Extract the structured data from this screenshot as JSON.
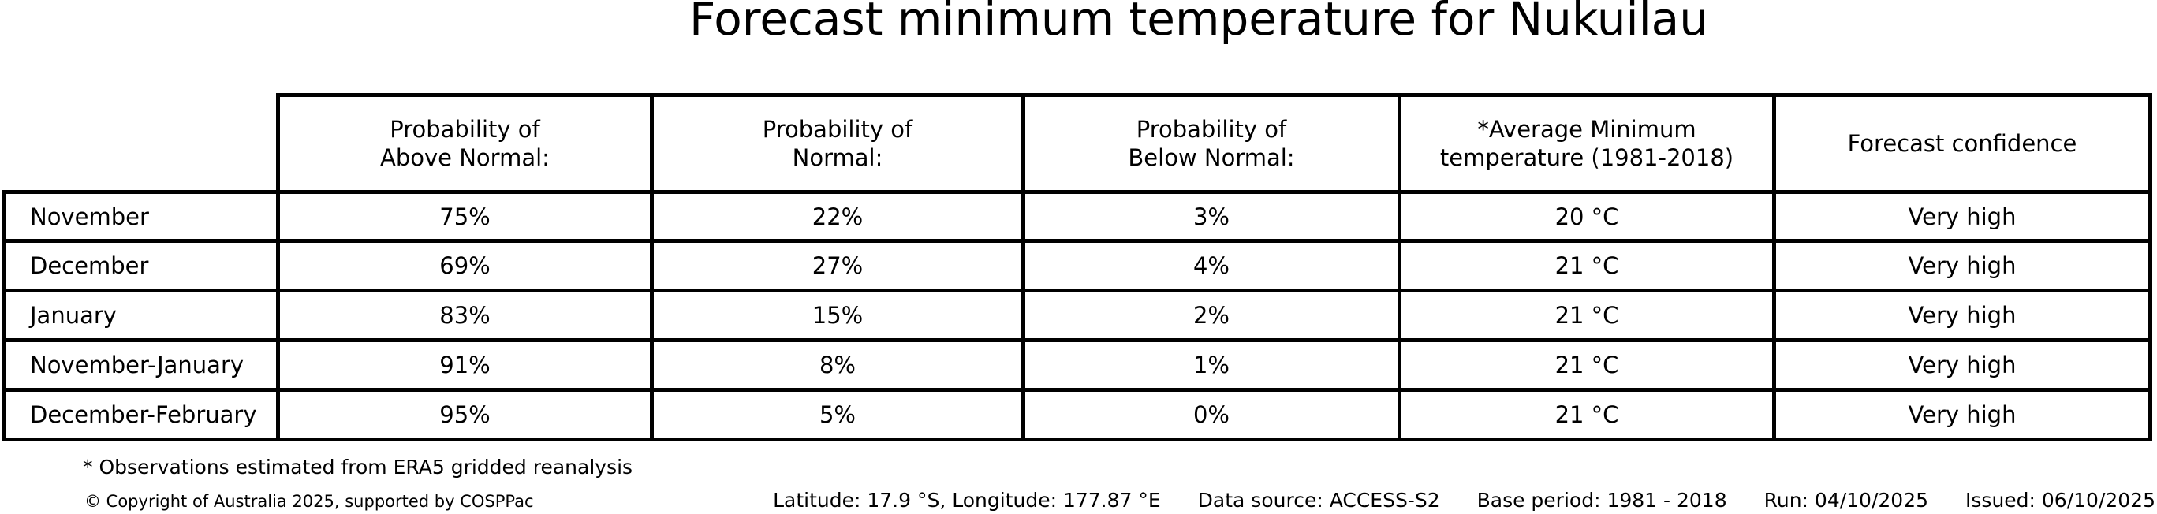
{
  "title": "Forecast minimum temperature for Nukuilau",
  "table": {
    "columns": [
      "Probability of\nAbove Normal:",
      "Probability of\nNormal:",
      "Probability of\nBelow Normal:",
      "*Average Minimum\ntemperature (1981-2018)",
      "Forecast confidence"
    ],
    "rows": [
      {
        "label": "November",
        "above": "75%",
        "normal": "22%",
        "below": "3%",
        "temp": "20 °C",
        "confidence": "Very high"
      },
      {
        "label": "December",
        "above": "69%",
        "normal": "27%",
        "below": "4%",
        "temp": "21 °C",
        "confidence": "Very high"
      },
      {
        "label": "January",
        "above": "83%",
        "normal": "15%",
        "below": "2%",
        "temp": "21 °C",
        "confidence": "Very high"
      },
      {
        "label": "November-January",
        "above": "91%",
        "normal": "8%",
        "below": "1%",
        "temp": "21 °C",
        "confidence": "Very high"
      },
      {
        "label": "December-February",
        "above": "95%",
        "normal": "5%",
        "below": "0%",
        "temp": "21 °C",
        "confidence": "Very high"
      }
    ]
  },
  "footnote": "* Observations estimated from ERA5 gridded reanalysis",
  "footer": {
    "copyright": "© Copyright of Australia 2025, supported by COSPPac",
    "location": "Latitude: 17.9 °S, Longitude: 177.87 °E",
    "data_source": "Data source: ACCESS-S2",
    "base_period": "Base period: 1981 - 2018",
    "run": "Run: 04/10/2025",
    "issued": "Issued: 06/10/2025"
  },
  "chart_data": {
    "type": "table",
    "title": "Forecast minimum temperature for Nukuilau",
    "categories": [
      "November",
      "December",
      "January",
      "November-January",
      "December-February"
    ],
    "series": [
      {
        "name": "Probability of Above Normal (%)",
        "values": [
          75,
          69,
          83,
          91,
          95
        ]
      },
      {
        "name": "Probability of Normal (%)",
        "values": [
          22,
          27,
          15,
          8,
          5
        ]
      },
      {
        "name": "Probability of Below Normal (%)",
        "values": [
          3,
          4,
          2,
          1,
          0
        ]
      },
      {
        "name": "Average Minimum temperature 1981-2018 (°C)",
        "values": [
          20,
          21,
          21,
          21,
          21
        ]
      },
      {
        "name": "Forecast confidence",
        "values": [
          "Very high",
          "Very high",
          "Very high",
          "Very high",
          "Very high"
        ]
      }
    ],
    "notes": [
      "Observations estimated from ERA5 gridded reanalysis",
      "Data source: ACCESS-S2",
      "Base period: 1981 - 2018"
    ]
  }
}
